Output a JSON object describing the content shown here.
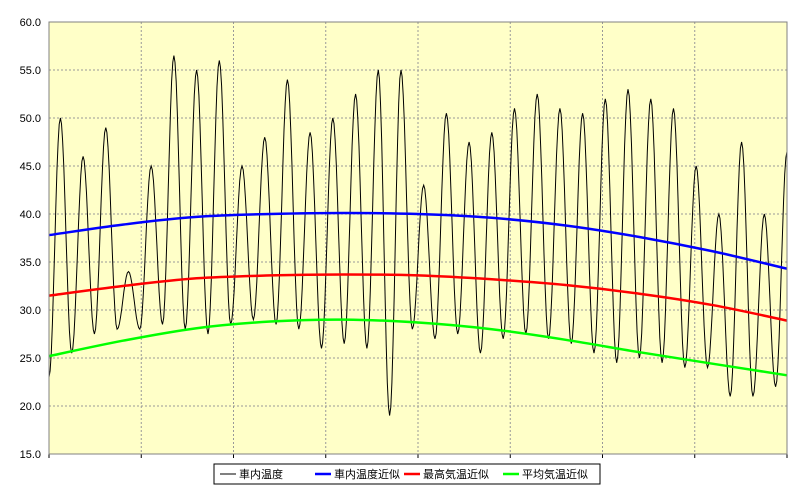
{
  "chart_data": {
    "type": "line",
    "title": "",
    "xlabel": "",
    "ylabel": "",
    "ylim": [
      15,
      60
    ],
    "yticks": [
      "15.0",
      "20.0",
      "25.0",
      "30.0",
      "35.0",
      "40.0",
      "45.0",
      "50.0",
      "55.0",
      "60.0"
    ],
    "x_range": [
      0,
      30
    ],
    "grid": true,
    "legend_position": "bottom",
    "colors": {
      "plot_bg": "#ffffc8",
      "grid": "#999999",
      "frame": "#808080"
    },
    "daily_extremes": [
      {
        "min": 23.0,
        "max": 50.0
      },
      {
        "min": 25.5,
        "max": 46.0
      },
      {
        "min": 27.5,
        "max": 49.0
      },
      {
        "min": 28.0,
        "max": 34.0
      },
      {
        "min": 28.0,
        "max": 45.0
      },
      {
        "min": 28.5,
        "max": 56.5
      },
      {
        "min": 28.0,
        "max": 55.0
      },
      {
        "min": 27.5,
        "max": 56.0
      },
      {
        "min": 28.5,
        "max": 45.0
      },
      {
        "min": 29.0,
        "max": 48.0
      },
      {
        "min": 28.5,
        "max": 54.0
      },
      {
        "min": 28.0,
        "max": 48.5
      },
      {
        "min": 26.0,
        "max": 50.0
      },
      {
        "min": 26.5,
        "max": 52.5
      },
      {
        "min": 26.0,
        "max": 55.0
      },
      {
        "min": 19.0,
        "max": 55.0
      },
      {
        "min": 28.0,
        "max": 43.0
      },
      {
        "min": 27.0,
        "max": 50.5
      },
      {
        "min": 27.5,
        "max": 47.5
      },
      {
        "min": 25.5,
        "max": 48.5
      },
      {
        "min": 27.0,
        "max": 51.0
      },
      {
        "min": 27.5,
        "max": 52.5
      },
      {
        "min": 27.0,
        "max": 51.0
      },
      {
        "min": 26.5,
        "max": 50.5
      },
      {
        "min": 25.5,
        "max": 52.0
      },
      {
        "min": 24.5,
        "max": 53.0
      },
      {
        "min": 25.0,
        "max": 52.0
      },
      {
        "min": 24.5,
        "max": 51.0
      },
      {
        "min": 24.0,
        "max": 45.0
      },
      {
        "min": 24.0,
        "max": 40.0
      },
      {
        "min": 21.0,
        "max": 47.5
      },
      {
        "min": 21.0,
        "max": 40.0
      },
      {
        "min": 22.0,
        "max": 46.5
      }
    ],
    "series": [
      {
        "name": "車内温度",
        "color": "#000000",
        "style": "daily-oscillation",
        "x": [],
        "values": []
      },
      {
        "name": "車内温度近似",
        "color": "#0000ff",
        "x": [
          0,
          3,
          6,
          9,
          12,
          15,
          18,
          21,
          24,
          27,
          30
        ],
        "values": [
          37.8,
          38.9,
          39.7,
          40.0,
          40.1,
          40.0,
          39.6,
          38.8,
          37.6,
          36.1,
          34.3
        ]
      },
      {
        "name": "最高気温近似",
        "color": "#ff0000",
        "x": [
          0,
          3,
          6,
          9,
          12,
          15,
          18,
          21,
          24,
          27,
          30
        ],
        "values": [
          31.5,
          32.5,
          33.3,
          33.6,
          33.7,
          33.6,
          33.2,
          32.6,
          31.7,
          30.5,
          28.9
        ]
      },
      {
        "name": "平均気温近似",
        "color": "#00ff00",
        "x": [
          0,
          3,
          6,
          9,
          12,
          15,
          18,
          21,
          24,
          27,
          30
        ],
        "values": [
          25.2,
          26.8,
          28.1,
          28.8,
          29.0,
          28.7,
          28.0,
          26.9,
          25.6,
          24.4,
          23.2
        ]
      }
    ]
  }
}
